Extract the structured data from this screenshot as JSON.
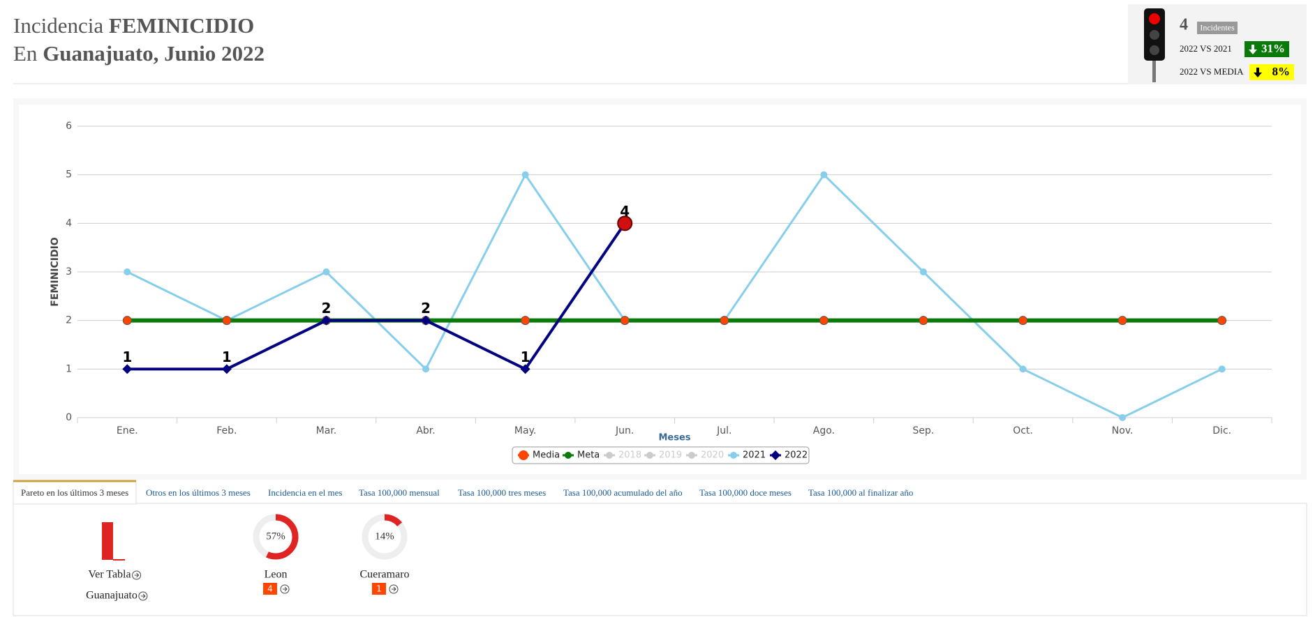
{
  "header": {
    "line1": {
      "plain": "Incidencia",
      "bold": "FEMINICIDIO"
    },
    "line2": {
      "plain": "En",
      "bold": "Guanajuato, Junio 2022"
    }
  },
  "indicator": {
    "count": "4",
    "count_label": "Incidentes",
    "comparisons": [
      {
        "label": "2022 VS 2021",
        "value": "31%",
        "color": "#0a7a0a",
        "text_color": "#ffffff"
      },
      {
        "label": "2022 VS MEDIA",
        "value": "8%",
        "color": "#ffff00",
        "text_color": "#000000"
      }
    ]
  },
  "chart_data": {
    "type": "line",
    "y_axis_label": "FEMINICIDIO",
    "x_axis_label": "Meses",
    "categories": [
      "Ene.",
      "Feb.",
      "Mar.",
      "Abr.",
      "May.",
      "Jun.",
      "Jul.",
      "Ago.",
      "Sep.",
      "Oct.",
      "Nov.",
      "Dic."
    ],
    "ylim": [
      0,
      6
    ],
    "yticks": [
      0,
      1,
      2,
      3,
      4,
      5,
      6
    ],
    "grid": true,
    "legend": "bottom",
    "series": [
      {
        "name": "Media",
        "color": "#ff4500",
        "style": "markers",
        "values": [
          2,
          2,
          2,
          2,
          2,
          2,
          2,
          2,
          2,
          2,
          2,
          2
        ]
      },
      {
        "name": "Meta",
        "color": "#0a7a0a",
        "style": "line",
        "values": [
          2,
          2,
          2,
          2,
          2,
          2,
          2,
          2,
          2,
          2,
          2,
          2
        ]
      },
      {
        "name": "2018",
        "color": "#cccccc",
        "hidden": true,
        "values": [
          null,
          null,
          null,
          null,
          null,
          null,
          null,
          null,
          null,
          null,
          null,
          null
        ]
      },
      {
        "name": "2019",
        "color": "#cccccc",
        "hidden": true,
        "values": [
          null,
          null,
          null,
          null,
          null,
          null,
          null,
          null,
          null,
          null,
          null,
          null
        ]
      },
      {
        "name": "2020",
        "color": "#cccccc",
        "hidden": true,
        "values": [
          null,
          null,
          null,
          null,
          null,
          null,
          null,
          null,
          null,
          null,
          null,
          null
        ]
      },
      {
        "name": "2021",
        "color": "#87ceeb",
        "style": "line",
        "values": [
          3,
          2,
          3,
          1,
          5,
          2,
          2,
          5,
          3,
          1,
          0,
          1
        ]
      },
      {
        "name": "2022",
        "color": "#000080",
        "style": "line",
        "data_labels": true,
        "values": [
          1,
          1,
          2,
          2,
          1,
          4,
          null,
          null,
          null,
          null,
          null,
          null
        ]
      }
    ]
  },
  "tabs": [
    "Pareto en los últimos 3 meses",
    "Otros en los últimos 3 meses",
    "Incidencia en el mes",
    "Tasa 100,000 mensual",
    "Tasa 100,000 tres meses",
    "Tasa 100,000 acumulado del año",
    "Tasa 100,000 doce meses",
    "Tasa 100,000 al finalizar año"
  ],
  "pareto": {
    "links": [
      "Ver Tabla",
      "Guanajuato"
    ],
    "items": [
      {
        "name": "Leon",
        "percent": 57,
        "percent_label": "57%",
        "count": 4
      },
      {
        "name": "Cueramaro",
        "percent": 14,
        "percent_label": "14%",
        "count": 1
      }
    ]
  }
}
